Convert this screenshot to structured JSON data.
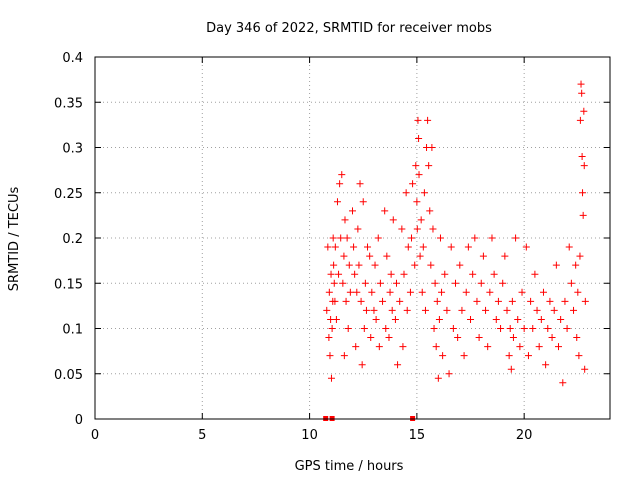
{
  "chart_data": {
    "type": "scatter",
    "title": "Day 346 of 2022, SRMTID for receiver mobs",
    "xlabel": "GPS time / hours",
    "ylabel": "SRMTID / TECUs",
    "xlim": [
      0,
      24
    ],
    "ylim": [
      0,
      0.4
    ],
    "xticks": [
      0,
      5,
      10,
      15,
      20
    ],
    "xtick_labels": [
      "0",
      "5",
      "10",
      "15",
      "20"
    ],
    "yticks": [
      0,
      0.05,
      0.1,
      0.15,
      0.2,
      0.25,
      0.3,
      0.35,
      0.4
    ],
    "ytick_labels": [
      "0",
      "0.05",
      "0.1",
      "0.15",
      "0.2",
      "0.25",
      "0.3",
      "0.35",
      "0.4"
    ],
    "grid": true,
    "marker_color": "#ff0000",
    "marker": "plus",
    "zero_markers": [
      10.75,
      11.05,
      14.8
    ],
    "points": [
      [
        10.8,
        0.12
      ],
      [
        10.85,
        0.19
      ],
      [
        10.9,
        0.09
      ],
      [
        10.92,
        0.14
      ],
      [
        10.95,
        0.07
      ],
      [
        10.98,
        0.11
      ],
      [
        11.0,
        0.16
      ],
      [
        11.02,
        0.045
      ],
      [
        11.05,
        0.1
      ],
      [
        11.08,
        0.13
      ],
      [
        11.1,
        0.2
      ],
      [
        11.12,
        0.17
      ],
      [
        11.15,
        0.15
      ],
      [
        11.18,
        0.13
      ],
      [
        11.2,
        0.19
      ],
      [
        11.25,
        0.11
      ],
      [
        11.3,
        0.24
      ],
      [
        11.35,
        0.16
      ],
      [
        11.4,
        0.26
      ],
      [
        11.45,
        0.2
      ],
      [
        11.5,
        0.27
      ],
      [
        11.55,
        0.15
      ],
      [
        11.6,
        0.18
      ],
      [
        11.62,
        0.07
      ],
      [
        11.65,
        0.22
      ],
      [
        11.7,
        0.13
      ],
      [
        11.75,
        0.2
      ],
      [
        11.8,
        0.1
      ],
      [
        11.85,
        0.17
      ],
      [
        11.9,
        0.14
      ],
      [
        12.0,
        0.23
      ],
      [
        12.05,
        0.19
      ],
      [
        12.1,
        0.16
      ],
      [
        12.15,
        0.08
      ],
      [
        12.2,
        0.14
      ],
      [
        12.25,
        0.21
      ],
      [
        12.3,
        0.17
      ],
      [
        12.35,
        0.26
      ],
      [
        12.4,
        0.13
      ],
      [
        12.45,
        0.06
      ],
      [
        12.5,
        0.24
      ],
      [
        12.55,
        0.1
      ],
      [
        12.6,
        0.15
      ],
      [
        12.65,
        0.12
      ],
      [
        12.7,
        0.19
      ],
      [
        12.8,
        0.18
      ],
      [
        12.85,
        0.09
      ],
      [
        12.9,
        0.14
      ],
      [
        13.0,
        0.12
      ],
      [
        13.05,
        0.17
      ],
      [
        13.1,
        0.11
      ],
      [
        13.2,
        0.2
      ],
      [
        13.25,
        0.08
      ],
      [
        13.3,
        0.15
      ],
      [
        13.4,
        0.13
      ],
      [
        13.5,
        0.23
      ],
      [
        13.55,
        0.1
      ],
      [
        13.6,
        0.18
      ],
      [
        13.7,
        0.09
      ],
      [
        13.75,
        0.14
      ],
      [
        13.8,
        0.16
      ],
      [
        13.85,
        0.12
      ],
      [
        13.9,
        0.22
      ],
      [
        14.0,
        0.11
      ],
      [
        14.05,
        0.15
      ],
      [
        14.1,
        0.06
      ],
      [
        14.2,
        0.13
      ],
      [
        14.3,
        0.21
      ],
      [
        14.35,
        0.08
      ],
      [
        14.4,
        0.16
      ],
      [
        14.5,
        0.25
      ],
      [
        14.55,
        0.12
      ],
      [
        14.6,
        0.19
      ],
      [
        14.7,
        0.14
      ],
      [
        14.75,
        0.2
      ],
      [
        14.8,
        0.26
      ],
      [
        14.9,
        0.17
      ],
      [
        14.95,
        0.28
      ],
      [
        15.0,
        0.24
      ],
      [
        15.02,
        0.21
      ],
      [
        15.05,
        0.33
      ],
      [
        15.08,
        0.31
      ],
      [
        15.1,
        0.27
      ],
      [
        15.15,
        0.18
      ],
      [
        15.2,
        0.22
      ],
      [
        15.25,
        0.14
      ],
      [
        15.3,
        0.19
      ],
      [
        15.35,
        0.25
      ],
      [
        15.4,
        0.12
      ],
      [
        15.45,
        0.3
      ],
      [
        15.5,
        0.33
      ],
      [
        15.55,
        0.28
      ],
      [
        15.6,
        0.23
      ],
      [
        15.65,
        0.17
      ],
      [
        15.7,
        0.3
      ],
      [
        15.75,
        0.21
      ],
      [
        15.8,
        0.1
      ],
      [
        15.85,
        0.15
      ],
      [
        15.9,
        0.08
      ],
      [
        15.95,
        0.13
      ],
      [
        16.0,
        0.045
      ],
      [
        16.05,
        0.11
      ],
      [
        16.1,
        0.2
      ],
      [
        16.15,
        0.14
      ],
      [
        16.2,
        0.07
      ],
      [
        16.3,
        0.16
      ],
      [
        16.4,
        0.12
      ],
      [
        16.5,
        0.05
      ],
      [
        16.6,
        0.19
      ],
      [
        16.7,
        0.1
      ],
      [
        16.8,
        0.15
      ],
      [
        16.9,
        0.09
      ],
      [
        17.0,
        0.17
      ],
      [
        17.1,
        0.12
      ],
      [
        17.2,
        0.07
      ],
      [
        17.3,
        0.14
      ],
      [
        17.4,
        0.19
      ],
      [
        17.5,
        0.11
      ],
      [
        17.6,
        0.16
      ],
      [
        17.7,
        0.2
      ],
      [
        17.8,
        0.13
      ],
      [
        17.9,
        0.09
      ],
      [
        18.0,
        0.15
      ],
      [
        18.1,
        0.18
      ],
      [
        18.2,
        0.12
      ],
      [
        18.3,
        0.08
      ],
      [
        18.4,
        0.14
      ],
      [
        18.5,
        0.2
      ],
      [
        18.6,
        0.16
      ],
      [
        18.7,
        0.11
      ],
      [
        18.8,
        0.13
      ],
      [
        18.9,
        0.1
      ],
      [
        19.0,
        0.15
      ],
      [
        19.1,
        0.18
      ],
      [
        19.2,
        0.12
      ],
      [
        19.3,
        0.07
      ],
      [
        19.35,
        0.1
      ],
      [
        19.4,
        0.055
      ],
      [
        19.45,
        0.13
      ],
      [
        19.5,
        0.09
      ],
      [
        19.6,
        0.2
      ],
      [
        19.7,
        0.11
      ],
      [
        19.8,
        0.08
      ],
      [
        19.9,
        0.14
      ],
      [
        20.0,
        0.1
      ],
      [
        20.1,
        0.19
      ],
      [
        20.2,
        0.07
      ],
      [
        20.3,
        0.13
      ],
      [
        20.4,
        0.1
      ],
      [
        20.5,
        0.16
      ],
      [
        20.6,
        0.12
      ],
      [
        20.7,
        0.08
      ],
      [
        20.8,
        0.11
      ],
      [
        20.9,
        0.14
      ],
      [
        21.0,
        0.06
      ],
      [
        21.1,
        0.1
      ],
      [
        21.2,
        0.13
      ],
      [
        21.3,
        0.09
      ],
      [
        21.4,
        0.12
      ],
      [
        21.5,
        0.17
      ],
      [
        21.6,
        0.08
      ],
      [
        21.7,
        0.11
      ],
      [
        21.8,
        0.04
      ],
      [
        21.9,
        0.13
      ],
      [
        22.0,
        0.1
      ],
      [
        22.1,
        0.19
      ],
      [
        22.2,
        0.15
      ],
      [
        22.3,
        0.12
      ],
      [
        22.4,
        0.17
      ],
      [
        22.45,
        0.09
      ],
      [
        22.5,
        0.14
      ],
      [
        22.55,
        0.07
      ],
      [
        22.6,
        0.18
      ],
      [
        22.62,
        0.33
      ],
      [
        22.65,
        0.37
      ],
      [
        22.68,
        0.36
      ],
      [
        22.7,
        0.29
      ],
      [
        22.72,
        0.25
      ],
      [
        22.75,
        0.225
      ],
      [
        22.78,
        0.34
      ],
      [
        22.8,
        0.28
      ],
      [
        22.82,
        0.055
      ],
      [
        22.85,
        0.13
      ]
    ]
  }
}
